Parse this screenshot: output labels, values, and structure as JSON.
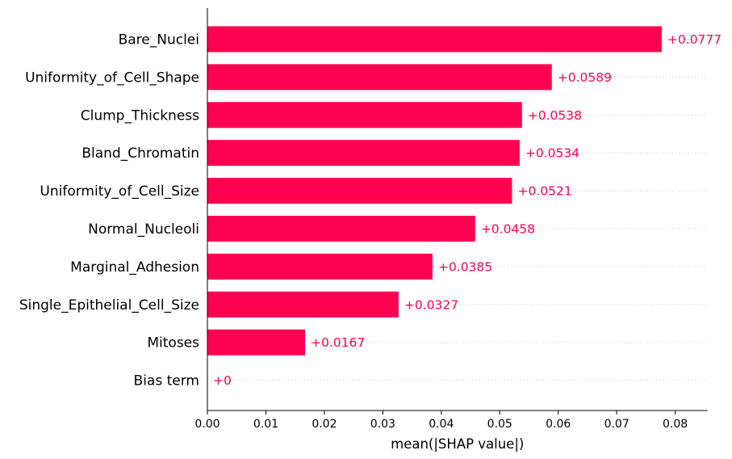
{
  "colors": {
    "bar": "#ff0051",
    "label": "#ff0051",
    "axis": "#000000",
    "gridline": "#cccccc"
  },
  "chart_data": {
    "type": "bar",
    "orientation": "horizontal",
    "categories": [
      "Bare_Nuclei",
      "Uniformity_of_Cell_Shape",
      "Clump_Thickness",
      "Bland_Chromatin",
      "Uniformity_of_Cell_Size",
      "Normal_Nucleoli",
      "Marginal_Adhesion",
      "Single_Epithelial_Cell_Size",
      "Mitoses",
      "Bias term"
    ],
    "values": [
      0.0777,
      0.0589,
      0.0538,
      0.0534,
      0.0521,
      0.0458,
      0.0385,
      0.0327,
      0.0167,
      0
    ],
    "value_labels": [
      "+0.0777",
      "+0.0589",
      "+0.0538",
      "+0.0534",
      "+0.0521",
      "+0.0458",
      "+0.0385",
      "+0.0327",
      "+0.0167",
      "+0"
    ],
    "xlabel": "mean(|SHAP value|)",
    "ylabel": "",
    "title": "",
    "xlim": [
      0,
      0.0855
    ],
    "xticks": [
      0.0,
      0.01,
      0.02,
      0.03,
      0.04,
      0.05,
      0.06,
      0.07,
      0.08
    ],
    "xtick_labels": [
      "0.00",
      "0.01",
      "0.02",
      "0.03",
      "0.04",
      "0.05",
      "0.06",
      "0.07",
      "0.08"
    ],
    "grid": "dotted row guides",
    "legend": "none"
  }
}
